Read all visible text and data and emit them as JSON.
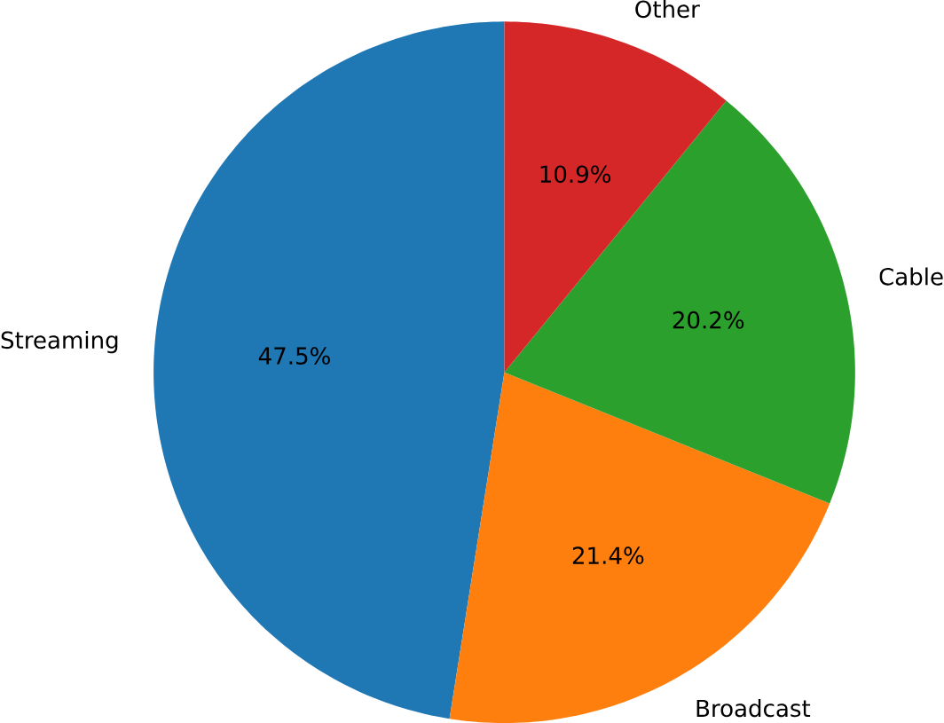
{
  "chart_data": {
    "type": "pie",
    "categories": [
      "Streaming",
      "Broadcast",
      "Cable",
      "Other"
    ],
    "values": [
      47.5,
      21.4,
      20.2,
      10.9
    ],
    "colors": [
      "#1f77b4",
      "#ff7f0e",
      "#2ca02c",
      "#d62728"
    ],
    "value_labels": [
      "47.5%",
      "21.4%",
      "20.2%",
      "10.9%"
    ]
  }
}
